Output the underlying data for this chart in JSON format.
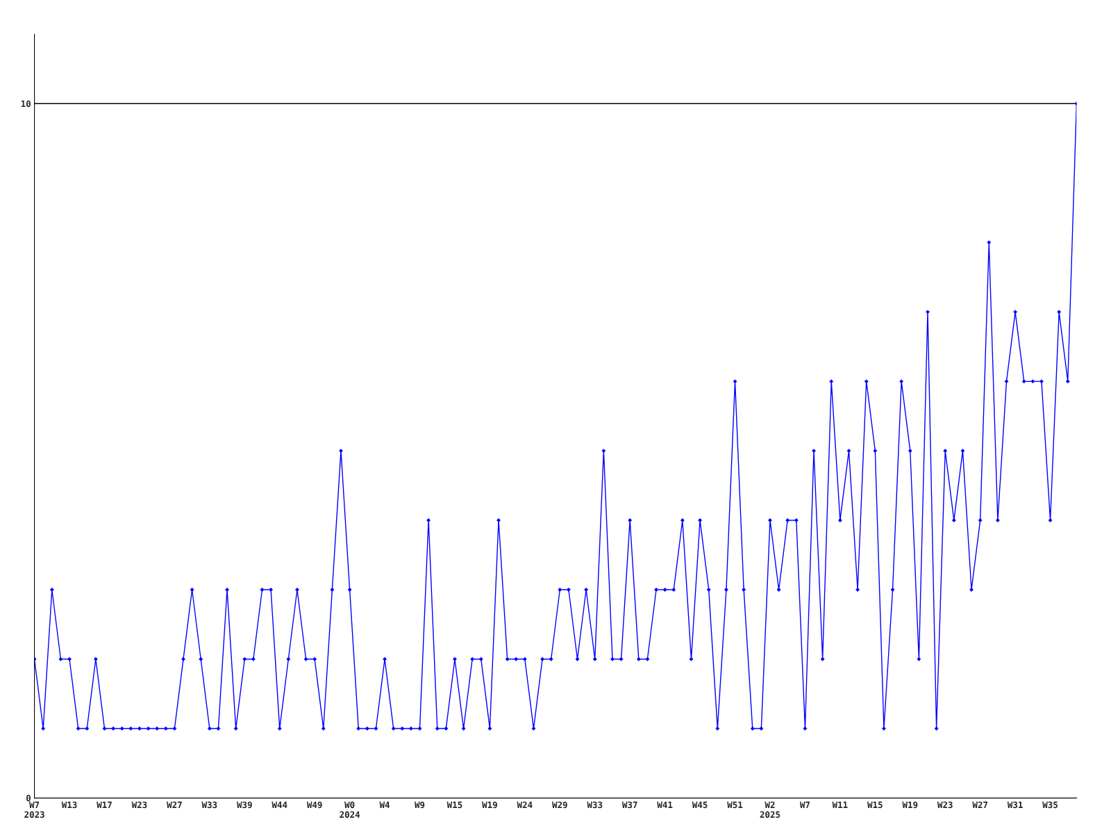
{
  "chart_data": {
    "type": "line",
    "categories": [
      "W7\n2023",
      null,
      null,
      null,
      "W13",
      null,
      null,
      null,
      "W17",
      null,
      null,
      null,
      "W23",
      null,
      null,
      null,
      "W27",
      null,
      null,
      null,
      "W33",
      null,
      null,
      null,
      "W39",
      null,
      null,
      null,
      "W44",
      null,
      null,
      null,
      "W49",
      null,
      null,
      null,
      "W0\n2024",
      null,
      null,
      null,
      "W4",
      null,
      null,
      null,
      "W9",
      null,
      null,
      null,
      "W15",
      null,
      null,
      null,
      "W19",
      null,
      null,
      null,
      "W24",
      null,
      null,
      null,
      "W29",
      null,
      null,
      null,
      "W33",
      null,
      null,
      null,
      "W37",
      null,
      null,
      null,
      "W41",
      null,
      null,
      null,
      "W45",
      null,
      null,
      null,
      "W51",
      null,
      null,
      null,
      "W2\n2025",
      null,
      null,
      null,
      "W7",
      null,
      null,
      null,
      "W11",
      null,
      null,
      null,
      "W15",
      null,
      null,
      null,
      "W19",
      null,
      null,
      null,
      "W23",
      null,
      null,
      null,
      "W27",
      null,
      null,
      null,
      "W31",
      null,
      null,
      null,
      "W35",
      null,
      null,
      null
    ],
    "series": [
      {
        "color": "#0000ff",
        "values": [
          2,
          1,
          3,
          2,
          2,
          1,
          1,
          2,
          1,
          1,
          1,
          1,
          1,
          1,
          1,
          1,
          1,
          2,
          3,
          2,
          1,
          1,
          3,
          1,
          2,
          2,
          3,
          3,
          1,
          2,
          3,
          2,
          2,
          1,
          3,
          5,
          3,
          1,
          1,
          1,
          2,
          1,
          1,
          1,
          1,
          4,
          1,
          1,
          2,
          1,
          2,
          2,
          1,
          4,
          2,
          2,
          2,
          1,
          2,
          2,
          3,
          3,
          2,
          3,
          2,
          5,
          2,
          2,
          4,
          2,
          2,
          3,
          3,
          3,
          4,
          2,
          4,
          3,
          1,
          3,
          6,
          3,
          1,
          1,
          4,
          3,
          4,
          4,
          1,
          5,
          2,
          6,
          4,
          5,
          3,
          6,
          5,
          1,
          3,
          6,
          5,
          2,
          7,
          1,
          5,
          4,
          5,
          3,
          4,
          8,
          4,
          6,
          7,
          6,
          6,
          6,
          4,
          7,
          6,
          10
        ]
      }
    ],
    "ylim": [
      0,
      11
    ],
    "yticks": [
      0,
      10
    ],
    "grid": "y",
    "legend": false,
    "marker": "diamond",
    "line_style": "solid"
  }
}
